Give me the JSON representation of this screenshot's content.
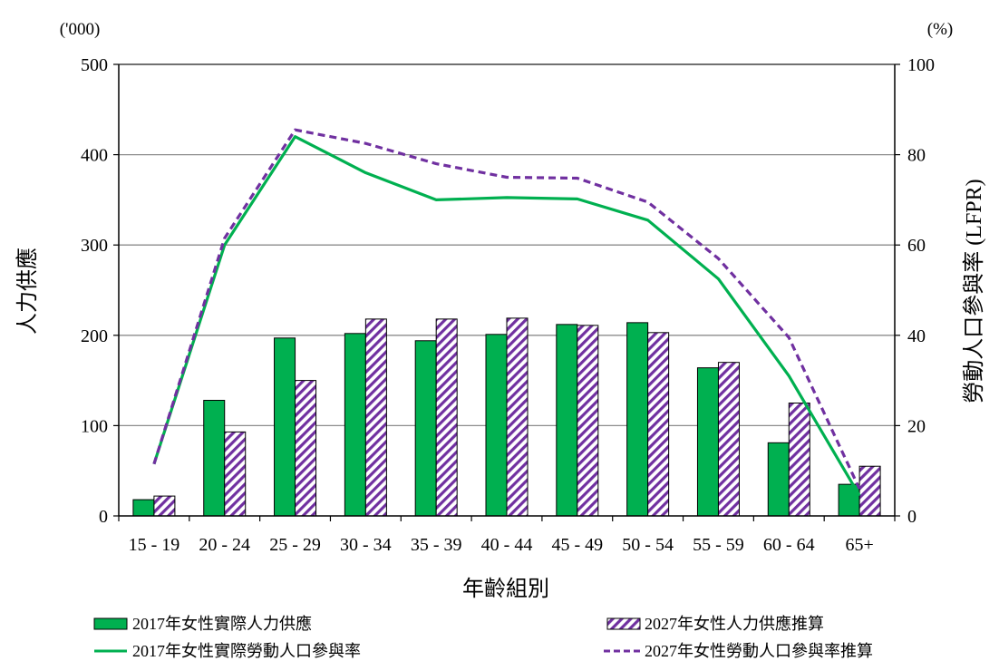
{
  "chart_data": {
    "type": "bar",
    "title": "",
    "categories": [
      "15 - 19",
      "20 - 24",
      "25 - 29",
      "30 - 34",
      "35 - 39",
      "40 - 44",
      "45 - 49",
      "50 - 54",
      "55 - 59",
      "60 - 64",
      "65+"
    ],
    "xlabel": "年齡組別",
    "ylabel_left": "人力供應",
    "ylabel_right": "勞動人口參與率 (LFPR)",
    "unit_left": "('000)",
    "unit_right": "(%)",
    "ylim_left": [
      0,
      500
    ],
    "ylim_right": [
      0,
      100
    ],
    "yticks_left": [
      0,
      100,
      200,
      300,
      400,
      500
    ],
    "yticks_right": [
      0,
      20,
      40,
      60,
      80,
      100
    ],
    "grid": true,
    "legend_position": "bottom",
    "bar_series": [
      {
        "name": "2017年女性實際人力供應",
        "axis": "left",
        "style": "solid",
        "color": "#00B050",
        "values": [
          18,
          128,
          197,
          202,
          194,
          201,
          212,
          214,
          164,
          81,
          35
        ]
      },
      {
        "name": "2027年女性人力供應推算",
        "axis": "left",
        "style": "hatched",
        "color": "#7030A0",
        "values": [
          22,
          93,
          150,
          218,
          218,
          219,
          211,
          203,
          170,
          125,
          55
        ]
      }
    ],
    "line_series": [
      {
        "name": "2017年女性實際勞動人口參與率",
        "axis": "right",
        "style": "solid",
        "color": "#00B050",
        "values": [
          11.5,
          60,
          84,
          76,
          70,
          70.5,
          70.2,
          65.5,
          52.5,
          31,
          4.5
        ]
      },
      {
        "name": "2027年女性勞動人口參與率推算",
        "axis": "right",
        "style": "dashed",
        "color": "#7030A0",
        "values": [
          11.5,
          61.5,
          85.5,
          82.5,
          78,
          75,
          74.8,
          69.5,
          57,
          39.5,
          6
        ]
      }
    ]
  }
}
